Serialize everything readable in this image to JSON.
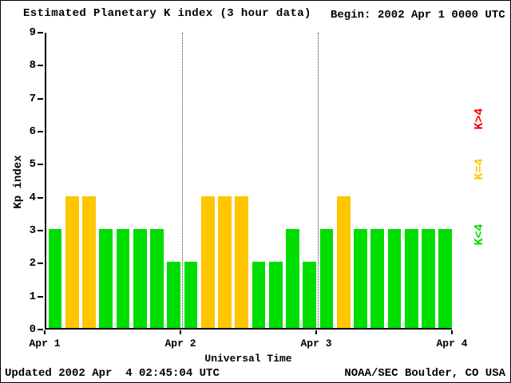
{
  "header": {
    "title": "Estimated Planetary K index (3 hour data)",
    "begin_label": "Begin:",
    "begin_value": "2002 Apr 1 0000 UTC"
  },
  "footer": {
    "updated": "Updated 2002 Apr  4 02:45:04 UTC",
    "credit": "NOAA/SEC Boulder, CO USA"
  },
  "legend": {
    "items": [
      {
        "label": "K>4",
        "color": "#ff0000"
      },
      {
        "label": "K=4",
        "color": "#ffc600"
      },
      {
        "label": "K<4",
        "color": "#00dd00"
      }
    ]
  },
  "chart_data": {
    "type": "bar",
    "title": "Estimated Planetary K index (3 hour data)",
    "xlabel": "Universal Time",
    "ylabel": "Kp index",
    "begin": "2002 Apr 1 0000 UTC",
    "bar_interval_hours": 3,
    "ylim": [
      0,
      9
    ],
    "yticks": [
      0,
      1,
      2,
      3,
      4,
      5,
      6,
      7,
      8,
      9
    ],
    "xticks": [
      "Apr 1",
      "Apr 2",
      "Apr 3",
      "Apr 4"
    ],
    "grid": "dotted vertical lines at interior day boundaries",
    "legend_position": "right, rotated",
    "values": [
      3,
      4,
      4,
      3,
      3,
      3,
      3,
      2,
      2,
      4,
      4,
      4,
      2,
      2,
      3,
      2,
      3,
      4,
      3,
      3,
      3,
      3,
      3,
      3
    ],
    "color_rule": {
      "lt4": "#00dd00",
      "eq4": "#ffc600",
      "gt4": "#ff0000"
    }
  }
}
